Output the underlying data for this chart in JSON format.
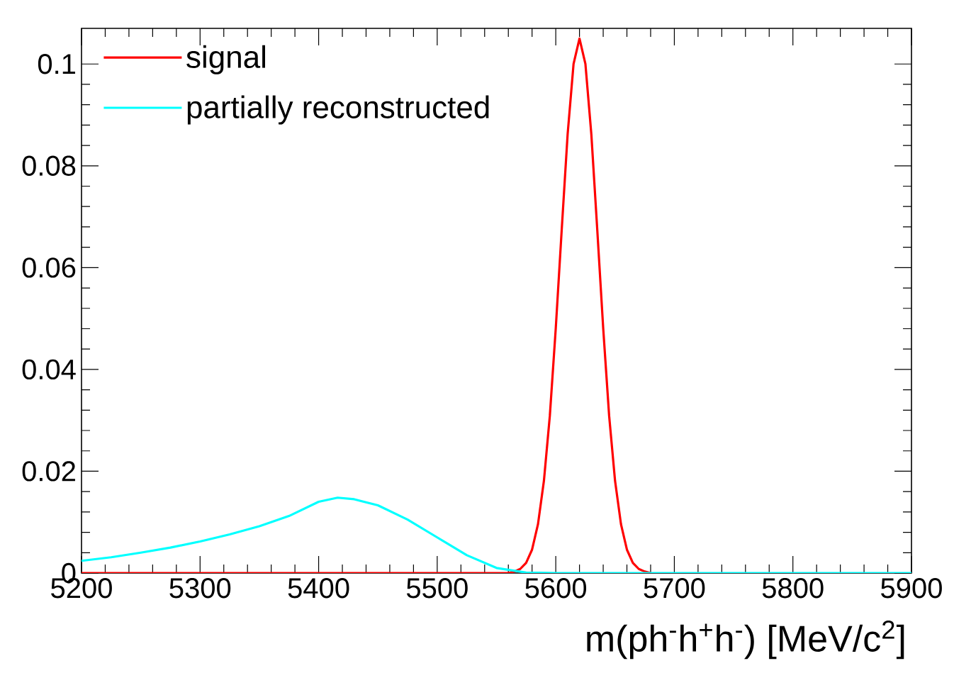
{
  "chart_data": {
    "type": "line",
    "xlabel": "m(ph$^{-}$h$^{+}$h$^{-}$) [MeV/c$^{2}$]",
    "xlim": [
      5200,
      5900
    ],
    "xticks": [
      5200,
      5300,
      5400,
      5500,
      5600,
      5700,
      5800,
      5900
    ],
    "ylim": [
      0,
      0.107
    ],
    "yticks": [
      0,
      0.02,
      0.04,
      0.06,
      0.08,
      0.1
    ],
    "legend": "top left",
    "grid": false,
    "marker": "none",
    "series": [
      {
        "name": "signal",
        "color": "#ff0000",
        "x": [
          5200,
          5300,
          5400,
          5500,
          5560,
          5565,
          5570,
          5575,
          5580,
          5585,
          5590,
          5595,
          5600,
          5605,
          5610,
          5615,
          5620,
          5625,
          5630,
          5635,
          5640,
          5645,
          5650,
          5655,
          5660,
          5665,
          5670,
          5675,
          5680
        ],
        "values": [
          0,
          0,
          0,
          0,
          0,
          0.0003,
          0.0008,
          0.002,
          0.0046,
          0.0096,
          0.0181,
          0.0309,
          0.0481,
          0.0674,
          0.0862,
          0.1,
          0.105,
          0.1,
          0.0862,
          0.0674,
          0.0481,
          0.0309,
          0.0181,
          0.0096,
          0.0046,
          0.002,
          0.0008,
          0.0003,
          0
        ]
      },
      {
        "name": "partially reconstructed",
        "color": "#00ffff",
        "x": [
          5200,
          5225,
          5250,
          5275,
          5300,
          5325,
          5350,
          5375,
          5400,
          5416,
          5430,
          5450,
          5475,
          5500,
          5525,
          5550,
          5575,
          5600,
          5700,
          5800,
          5900
        ],
        "values": [
          0.0024,
          0.0031,
          0.004,
          0.005,
          0.0062,
          0.0076,
          0.0092,
          0.0112,
          0.014,
          0.0148,
          0.0145,
          0.0133,
          0.0105,
          0.007,
          0.0035,
          0.001,
          0.0001,
          0,
          0,
          0,
          0
        ]
      }
    ]
  }
}
